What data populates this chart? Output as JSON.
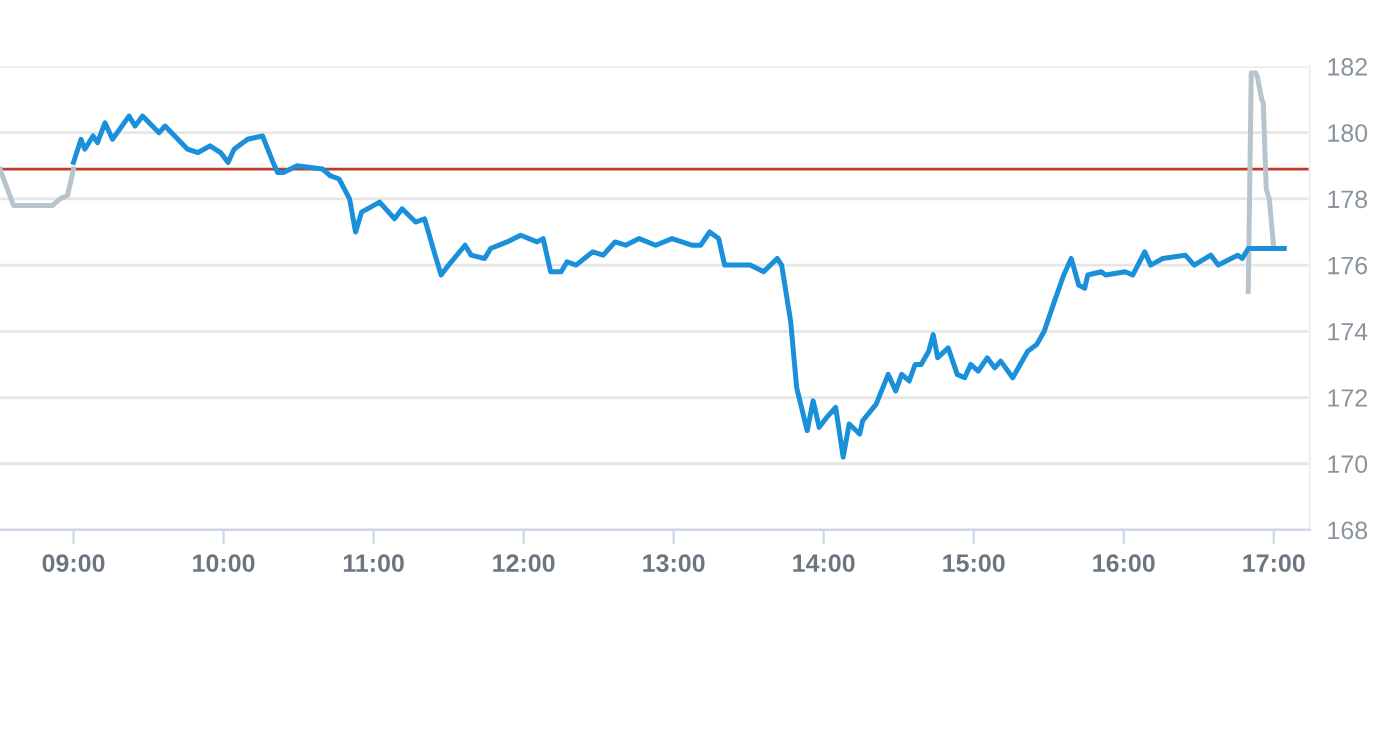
{
  "chart_data": {
    "type": "line",
    "xlim": [
      8.51,
      17.24
    ],
    "ylim": [
      168,
      182
    ],
    "xticks": [
      {
        "value": 9,
        "label": "09:00"
      },
      {
        "value": 10,
        "label": "10:00"
      },
      {
        "value": 11,
        "label": "11:00"
      },
      {
        "value": 12,
        "label": "12:00"
      },
      {
        "value": 13,
        "label": "13:00"
      },
      {
        "value": 14,
        "label": "14:00"
      },
      {
        "value": 15,
        "label": "15:00"
      },
      {
        "value": 16,
        "label": "16:00"
      },
      {
        "value": 17,
        "label": "17:00"
      }
    ],
    "yticks": [
      168,
      170,
      172,
      174,
      176,
      178,
      180,
      182
    ],
    "grid": "y",
    "legend": false,
    "marker": "none",
    "line_style": "solid",
    "ref_lines": [
      {
        "axis": "y",
        "value": 178.9,
        "color": "#c0392b"
      }
    ],
    "series": [
      {
        "color": "#b8c4cc",
        "x": [
          8.51,
          8.6,
          8.86,
          8.91,
          8.96,
          9.0,
          9.5,
          16.83,
          16.85,
          16.88,
          16.89,
          16.92,
          16.93,
          16.95,
          16.97,
          17.0
        ],
        "values": [
          178.9,
          177.8,
          177.8,
          178.0,
          178.1,
          178.9,
          null,
          175.2,
          181.8,
          181.8,
          181.7,
          181.0,
          180.9,
          178.3,
          178.0,
          176.5
        ]
      },
      {
        "color": "#1a90db",
        "x": [
          9.0,
          9.05,
          9.075,
          9.13,
          9.16,
          9.21,
          9.26,
          9.37,
          9.41,
          9.46,
          9.57,
          9.61,
          9.76,
          9.83,
          9.91,
          9.98,
          10.03,
          10.07,
          10.16,
          10.26,
          10.33,
          10.36,
          10.4,
          10.49,
          10.66,
          10.71,
          10.77,
          10.84,
          10.88,
          10.92,
          11.04,
          11.14,
          11.19,
          11.28,
          11.34,
          11.41,
          11.45,
          11.5,
          11.61,
          11.65,
          11.74,
          11.78,
          11.89,
          11.98,
          12.09,
          12.13,
          12.18,
          12.25,
          12.29,
          12.35,
          12.46,
          12.53,
          12.61,
          12.68,
          12.77,
          12.88,
          12.99,
          13.12,
          13.18,
          13.24,
          13.3,
          13.34,
          13.51,
          13.6,
          13.69,
          13.72,
          13.78,
          13.82,
          13.89,
          13.93,
          13.97,
          14.02,
          14.08,
          14.13,
          14.17,
          14.24,
          14.26,
          14.35,
          14.43,
          14.48,
          14.52,
          14.57,
          14.61,
          14.65,
          14.7,
          14.73,
          14.76,
          14.83,
          14.89,
          14.94,
          14.98,
          15.03,
          15.09,
          15.14,
          15.18,
          15.26,
          15.36,
          15.42,
          15.47,
          15.53,
          15.6,
          15.65,
          15.7,
          15.74,
          15.76,
          15.85,
          15.88,
          16.01,
          16.06,
          16.14,
          16.18,
          16.26,
          16.41,
          16.47,
          16.58,
          16.63,
          16.76,
          16.79,
          16.83,
          17.07
        ],
        "values": [
          179.1,
          179.8,
          179.5,
          179.9,
          179.7,
          180.3,
          179.8,
          180.5,
          180.2,
          180.5,
          180.0,
          180.2,
          179.5,
          179.4,
          179.6,
          179.4,
          179.1,
          179.5,
          179.8,
          179.9,
          179.1,
          178.8,
          178.8,
          179.0,
          178.9,
          178.7,
          178.6,
          178.0,
          177.0,
          177.6,
          177.9,
          177.4,
          177.7,
          177.3,
          177.4,
          176.3,
          175.7,
          176.0,
          176.6,
          176.3,
          176.2,
          176.5,
          176.7,
          176.9,
          176.7,
          176.8,
          175.8,
          175.8,
          176.1,
          176.0,
          176.4,
          176.3,
          176.7,
          176.6,
          176.8,
          176.6,
          176.8,
          176.6,
          176.6,
          177.0,
          176.8,
          176.0,
          176.0,
          175.8,
          176.2,
          176.0,
          174.3,
          172.3,
          171.0,
          171.9,
          171.1,
          171.4,
          171.7,
          170.2,
          171.2,
          170.9,
          171.3,
          171.8,
          172.7,
          172.2,
          172.7,
          172.5,
          173.0,
          173.0,
          173.4,
          173.9,
          173.2,
          173.5,
          172.7,
          172.6,
          173.0,
          172.8,
          173.2,
          172.9,
          173.1,
          172.6,
          173.4,
          173.6,
          174.0,
          174.8,
          175.7,
          176.2,
          175.4,
          175.3,
          175.7,
          175.8,
          175.7,
          175.8,
          175.7,
          176.4,
          176.0,
          176.2,
          176.3,
          176.0,
          176.3,
          176.0,
          176.3,
          176.2,
          176.5,
          176.5
        ]
      }
    ]
  }
}
